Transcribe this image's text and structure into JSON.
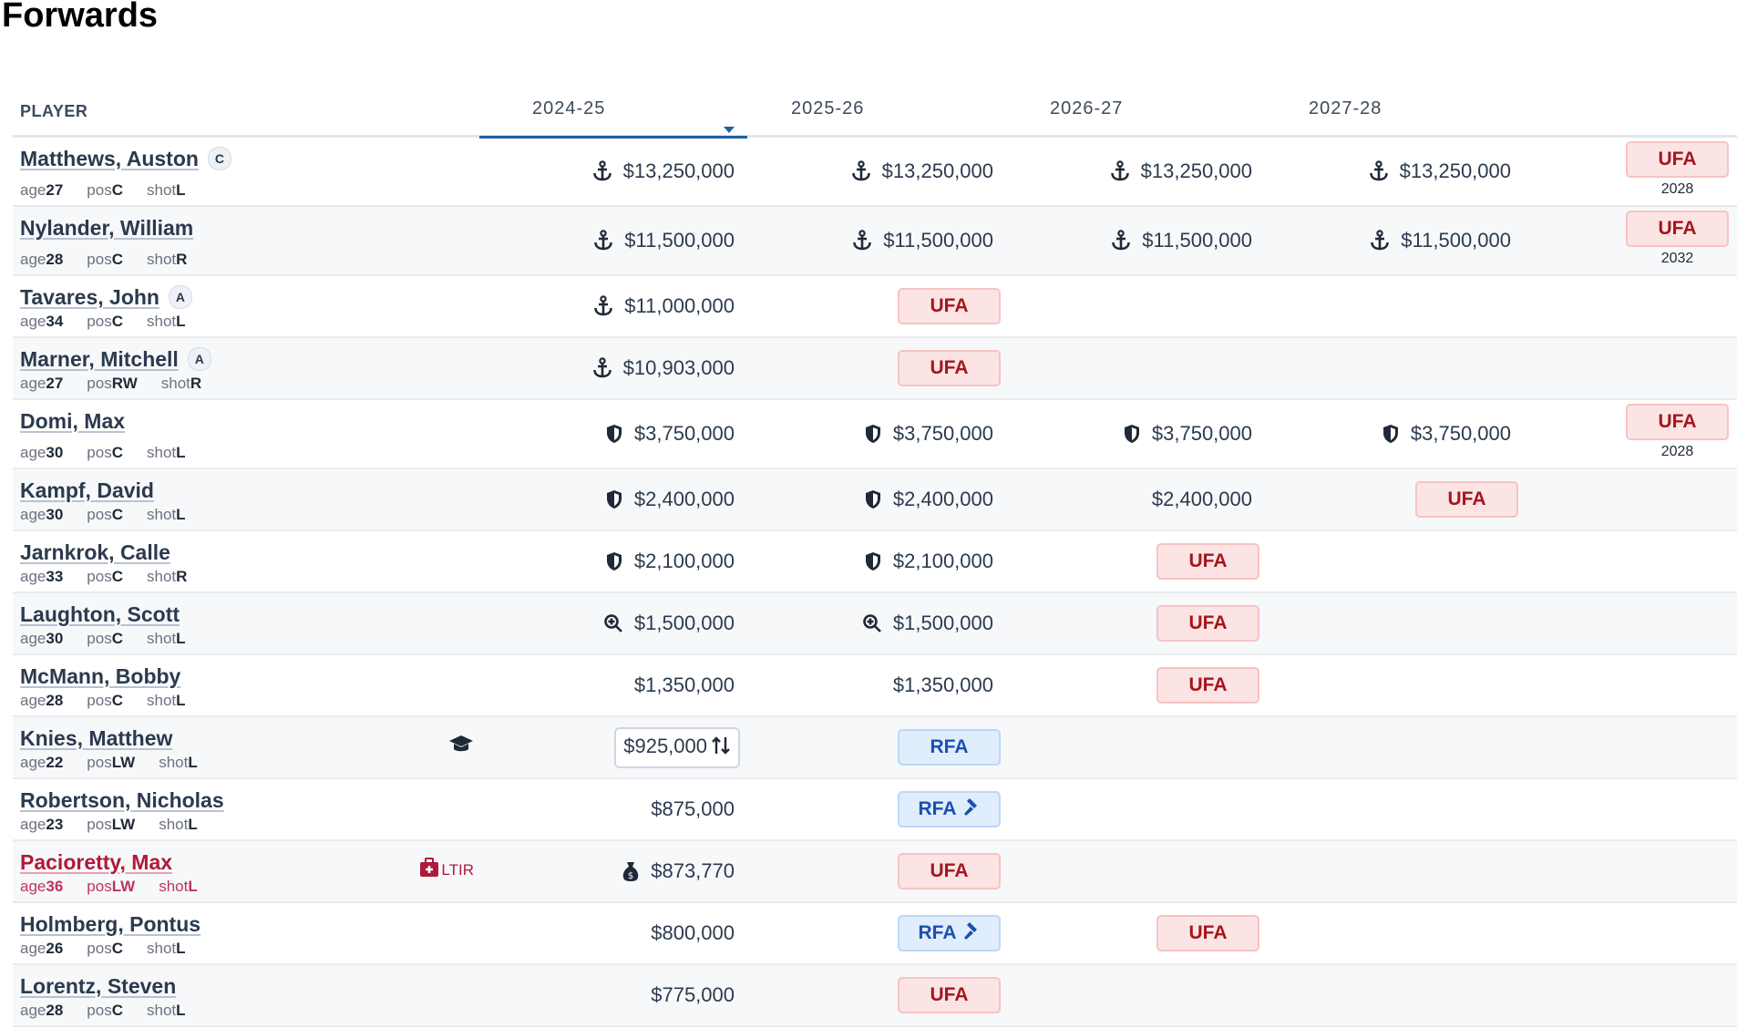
{
  "title": "Forwards",
  "header": {
    "player": "PLAYER",
    "seasons": [
      "2024-25",
      "2025-26",
      "2026-27",
      "2027-28"
    ],
    "sorted_column": "2024-25"
  },
  "colors": {
    "accent": "#1d5fa8",
    "ufa_text": "#a3161e",
    "ufa_bg": "#fde4e4",
    "rfa_text": "#1d4fb0",
    "rfa_bg": "#dfedfd",
    "ltir": "#b0193a"
  },
  "labels": {
    "age": "age",
    "pos": "pos",
    "shot": "shot"
  },
  "rows": [
    {
      "name": "Matthews, Auston",
      "letter": "C",
      "age": "27",
      "pos": "C",
      "shot": "L",
      "cells": [
        {
          "icon": "anchor",
          "value": "$13,250,000"
        },
        {
          "icon": "anchor",
          "value": "$13,250,000"
        },
        {
          "icon": "anchor",
          "value": "$13,250,000"
        },
        {
          "icon": "anchor",
          "value": "$13,250,000"
        }
      ],
      "final": {
        "badge": "UFA",
        "year": "2028"
      }
    },
    {
      "name": "Nylander, William",
      "age": "28",
      "pos": "C",
      "shot": "R",
      "cells": [
        {
          "icon": "anchor",
          "value": "$11,500,000"
        },
        {
          "icon": "anchor",
          "value": "$11,500,000"
        },
        {
          "icon": "anchor",
          "value": "$11,500,000"
        },
        {
          "icon": "anchor",
          "value": "$11,500,000"
        }
      ],
      "final": {
        "badge": "UFA",
        "year": "2032"
      }
    },
    {
      "name": "Tavares, John",
      "letter": "A",
      "age": "34",
      "pos": "C",
      "shot": "L",
      "cells": [
        {
          "icon": "anchor",
          "value": "$11,000,000"
        },
        {
          "badge": "UFA"
        },
        null,
        null
      ]
    },
    {
      "name": "Marner, Mitchell",
      "letter": "A",
      "age": "27",
      "pos": "RW",
      "shot": "R",
      "cells": [
        {
          "icon": "anchor",
          "value": "$10,903,000"
        },
        {
          "badge": "UFA"
        },
        null,
        null
      ]
    },
    {
      "name": "Domi, Max",
      "age": "30",
      "pos": "C",
      "shot": "L",
      "cells": [
        {
          "icon": "shield",
          "value": "$3,750,000"
        },
        {
          "icon": "shield",
          "value": "$3,750,000"
        },
        {
          "icon": "shield",
          "value": "$3,750,000"
        },
        {
          "icon": "shield",
          "value": "$3,750,000"
        }
      ],
      "final": {
        "badge": "UFA",
        "year": "2028"
      }
    },
    {
      "name": "Kampf, David",
      "age": "30",
      "pos": "C",
      "shot": "L",
      "cells": [
        {
          "icon": "shield",
          "value": "$2,400,000"
        },
        {
          "icon": "shield",
          "value": "$2,400,000"
        },
        {
          "value": "$2,400,000"
        },
        {
          "badge": "UFA"
        }
      ]
    },
    {
      "name": "Jarnkrok, Calle",
      "age": "33",
      "pos": "C",
      "shot": "R",
      "cells": [
        {
          "icon": "shield",
          "value": "$2,100,000"
        },
        {
          "icon": "shield",
          "value": "$2,100,000"
        },
        {
          "badge": "UFA"
        },
        null
      ]
    },
    {
      "name": "Laughton, Scott",
      "age": "30",
      "pos": "C",
      "shot": "L",
      "cells": [
        {
          "icon": "search-plus",
          "value": "$1,500,000"
        },
        {
          "icon": "search-plus",
          "value": "$1,500,000"
        },
        {
          "badge": "UFA"
        },
        null
      ]
    },
    {
      "name": "McMann, Bobby",
      "age": "28",
      "pos": "C",
      "shot": "L",
      "cells": [
        {
          "value": "$1,350,000"
        },
        {
          "value": "$1,350,000"
        },
        {
          "badge": "UFA"
        },
        null
      ]
    },
    {
      "name": "Knies, Matthew",
      "age": "22",
      "pos": "LW",
      "shot": "L",
      "player_icon": "graduation-cap",
      "cells": [
        {
          "value": "$925,000",
          "boxed": true,
          "trailing_icon": "sort-arrows"
        },
        {
          "badge": "RFA"
        },
        null,
        null
      ]
    },
    {
      "name": "Robertson, Nicholas",
      "age": "23",
      "pos": "LW",
      "shot": "L",
      "cells": [
        {
          "value": "$875,000"
        },
        {
          "badge": "RFA",
          "badge_icon": "gavel"
        },
        null,
        null
      ]
    },
    {
      "name": "Pacioretty, Max",
      "age": "36",
      "pos": "LW",
      "shot": "L",
      "player_icon": "medkit",
      "player_tag": "LTIR",
      "cells": [
        {
          "icon": "money-bag",
          "value": "$873,770"
        },
        {
          "badge": "UFA"
        },
        null,
        null
      ]
    },
    {
      "name": "Holmberg, Pontus",
      "age": "26",
      "pos": "C",
      "shot": "L",
      "cells": [
        {
          "value": "$800,000"
        },
        {
          "badge": "RFA",
          "badge_icon": "gavel"
        },
        {
          "badge": "UFA"
        },
        null
      ]
    },
    {
      "name": "Lorentz, Steven",
      "age": "28",
      "pos": "C",
      "shot": "L",
      "cells": [
        {
          "value": "$775,000"
        },
        {
          "badge": "UFA"
        },
        null,
        null
      ]
    }
  ]
}
